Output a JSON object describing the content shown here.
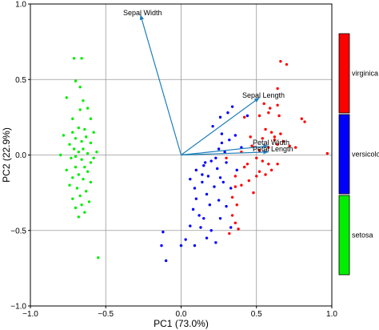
{
  "chart_data": {
    "type": "scatter",
    "xlabel": "PC1 (73.0%)",
    "ylabel": "PC2 (22.9%)",
    "xlim": [
      -1.0,
      1.0
    ],
    "ylim": [
      -1.0,
      1.0
    ],
    "x_ticks": [
      -1.0,
      -0.5,
      0.0,
      0.5,
      1.0
    ],
    "y_ticks": [
      -1.0,
      -0.5,
      0.0,
      0.5,
      1.0
    ],
    "x_tick_labels": [
      "−1.0",
      "−0.5",
      "0.0",
      "0.5",
      "1.0"
    ],
    "y_tick_labels": [
      "−1.0",
      "−0.5",
      "0.0",
      "0.5",
      "1.0"
    ],
    "grid": true,
    "legend_position": "right",
    "series": [
      {
        "name": "virginica",
        "color": "#ff0000",
        "points": [
          [
            0.66,
            0.62
          ],
          [
            0.7,
            0.6
          ],
          [
            0.64,
            0.44
          ],
          [
            0.64,
            0.33
          ],
          [
            0.65,
            0.26
          ],
          [
            0.8,
            0.24
          ],
          [
            0.82,
            0.22
          ],
          [
            0.55,
            0.34
          ],
          [
            0.59,
            0.31
          ],
          [
            0.58,
            0.28
          ],
          [
            0.52,
            0.26
          ],
          [
            0.56,
            0.17
          ],
          [
            0.6,
            0.15
          ],
          [
            0.54,
            0.11
          ],
          [
            0.62,
            0.12
          ],
          [
            0.64,
            0.07
          ],
          [
            0.68,
            0.09
          ],
          [
            0.72,
            0.06
          ],
          [
            0.76,
            0.05
          ],
          [
            0.97,
            0.01
          ],
          [
            0.58,
            0.05
          ],
          [
            0.52,
            0.03
          ],
          [
            0.5,
            -0.02
          ],
          [
            0.44,
            -0.06
          ],
          [
            0.4,
            0.02
          ],
          [
            0.46,
            0.12
          ],
          [
            0.42,
            0.25
          ],
          [
            0.47,
            0.06
          ],
          [
            0.54,
            -0.04
          ],
          [
            0.58,
            -0.06
          ],
          [
            0.6,
            -0.1
          ],
          [
            0.64,
            -0.06
          ],
          [
            0.56,
            -0.13
          ],
          [
            0.5,
            -0.14
          ],
          [
            0.45,
            -0.17
          ],
          [
            0.4,
            -0.2
          ],
          [
            0.36,
            -0.21
          ],
          [
            0.34,
            -0.28
          ],
          [
            0.37,
            -0.33
          ],
          [
            0.34,
            -0.4
          ],
          [
            0.36,
            -0.45
          ],
          [
            0.38,
            -0.49
          ],
          [
            0.32,
            -0.52
          ],
          [
            0.36,
            -0.14
          ],
          [
            0.42,
            -0.08
          ],
          [
            0.3,
            -0.02
          ],
          [
            0.52,
            -0.11
          ],
          [
            0.62,
            0.1
          ],
          [
            0.48,
            -0.25
          ],
          [
            0.66,
            0.14
          ]
        ]
      },
      {
        "name": "versicolor",
        "color": "#0000ff",
        "points": [
          [
            0.34,
            0.32
          ],
          [
            0.31,
            0.28
          ],
          [
            0.21,
            0.19
          ],
          [
            0.26,
            0.25
          ],
          [
            0.44,
            0.26
          ],
          [
            0.27,
            0.08
          ],
          [
            0.32,
            0.1
          ],
          [
            0.23,
            -0.02
          ],
          [
            0.16,
            -0.05
          ],
          [
            0.18,
            -0.14
          ],
          [
            0.14,
            -0.18
          ],
          [
            0.09,
            -0.22
          ],
          [
            0.17,
            -0.26
          ],
          [
            0.1,
            -0.29
          ],
          [
            0.22,
            -0.21
          ],
          [
            0.28,
            -0.18
          ],
          [
            0.08,
            -0.36
          ],
          [
            0.12,
            -0.4
          ],
          [
            0.06,
            -0.47
          ],
          [
            0.03,
            -0.56
          ],
          [
            0.0,
            -0.6
          ],
          [
            -0.12,
            -0.51
          ],
          [
            -0.13,
            -0.6
          ],
          [
            -0.1,
            -0.7
          ],
          [
            0.09,
            -0.6
          ],
          [
            0.17,
            -0.55
          ],
          [
            0.2,
            -0.5
          ],
          [
            0.26,
            -0.42
          ],
          [
            0.25,
            -0.3
          ],
          [
            0.3,
            -0.34
          ],
          [
            0.15,
            -0.07
          ],
          [
            0.2,
            -0.04
          ],
          [
            0.3,
            -0.05
          ],
          [
            0.24,
            -0.09
          ],
          [
            0.14,
            -0.13
          ],
          [
            0.26,
            -0.15
          ],
          [
            0.33,
            -0.22
          ],
          [
            0.37,
            -0.1
          ],
          [
            0.4,
            0.05
          ],
          [
            0.36,
            0.13
          ],
          [
            0.27,
            0.14
          ],
          [
            0.1,
            -0.1
          ],
          [
            0.06,
            -0.16
          ],
          [
            0.19,
            -0.33
          ],
          [
            0.15,
            -0.42
          ],
          [
            0.13,
            -0.48
          ],
          [
            0.23,
            -0.58
          ],
          [
            0.33,
            -0.48
          ],
          [
            0.29,
            0.02
          ],
          [
            0.25,
            0.04
          ]
        ]
      },
      {
        "name": "setosa",
        "color": "#00ee00",
        "points": [
          [
            -0.66,
            0.64
          ],
          [
            -0.71,
            0.64
          ],
          [
            -0.7,
            0.49
          ],
          [
            -0.67,
            0.45
          ],
          [
            -0.76,
            0.38
          ],
          [
            -0.65,
            0.36
          ],
          [
            -0.62,
            0.31
          ],
          [
            -0.67,
            0.3
          ],
          [
            -0.72,
            0.24
          ],
          [
            -0.6,
            0.24
          ],
          [
            -0.68,
            0.18
          ],
          [
            -0.64,
            0.17
          ],
          [
            -0.58,
            0.15
          ],
          [
            -0.72,
            0.15
          ],
          [
            -0.78,
            0.13
          ],
          [
            -0.63,
            0.12
          ],
          [
            -0.7,
            0.11
          ],
          [
            -0.66,
            0.09
          ],
          [
            -0.6,
            0.08
          ],
          [
            -0.74,
            0.07
          ],
          [
            -0.71,
            0.04
          ],
          [
            -0.65,
            0.04
          ],
          [
            -0.68,
            0.02
          ],
          [
            -0.62,
            0.01
          ],
          [
            -0.7,
            -0.01
          ],
          [
            -0.73,
            -0.02
          ],
          [
            -0.66,
            -0.03
          ],
          [
            -0.6,
            -0.05
          ],
          [
            -0.64,
            -0.08
          ],
          [
            -0.7,
            -0.08
          ],
          [
            -0.76,
            -0.1
          ],
          [
            -0.62,
            -0.11
          ],
          [
            -0.68,
            -0.13
          ],
          [
            -0.72,
            -0.15
          ],
          [
            -0.65,
            -0.16
          ],
          [
            -0.6,
            -0.18
          ],
          [
            -0.74,
            -0.2
          ],
          [
            -0.69,
            -0.22
          ],
          [
            -0.63,
            -0.24
          ],
          [
            -0.67,
            -0.27
          ],
          [
            -0.72,
            -0.29
          ],
          [
            -0.61,
            -0.31
          ],
          [
            -0.66,
            -0.33
          ],
          [
            -0.7,
            -0.35
          ],
          [
            -0.64,
            -0.38
          ],
          [
            -0.68,
            -0.41
          ],
          [
            -0.56,
            0.02
          ],
          [
            -0.8,
            0.0
          ],
          [
            -0.58,
            -0.02
          ],
          [
            -0.55,
            -0.68
          ]
        ]
      }
    ],
    "loadings": [
      {
        "name": "Sepal Width",
        "x": -0.27,
        "y": 0.93
      },
      {
        "name": "Sepal Length",
        "x": 0.52,
        "y": 0.38
      },
      {
        "name": "Petal Width",
        "x": 0.58,
        "y": 0.06
      },
      {
        "name": "Petal Length",
        "x": 0.58,
        "y": 0.02
      }
    ],
    "loading_color": "#1f7fb8",
    "legend": [
      {
        "label": "virginica",
        "color": "#ff0000"
      },
      {
        "label": "versicolor",
        "color": "#0000ff"
      },
      {
        "label": "setosa",
        "color": "#00ee00"
      }
    ]
  }
}
